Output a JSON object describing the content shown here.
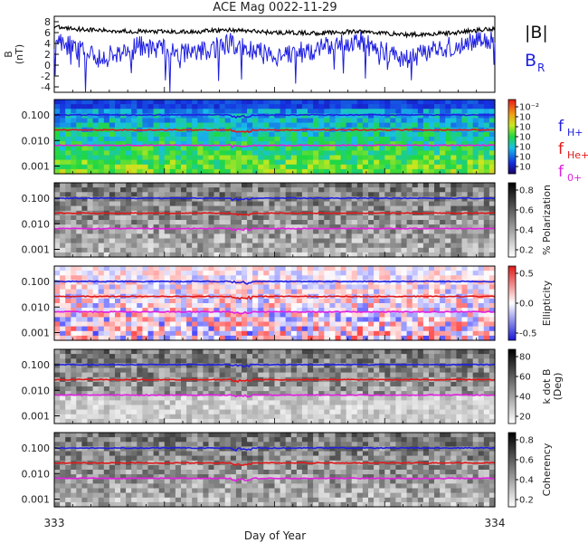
{
  "title": "ACE Mag 0022-11-29",
  "xlabel": "Day of Year",
  "x_ticks": [
    "333",
    "334"
  ],
  "legend": {
    "b_total": "|B|",
    "b_r_main": "B",
    "b_r_sub": "R",
    "fh_main": "f",
    "fh_sub": "H+",
    "fhe_main": "f",
    "fhe_sub": "He+",
    "fo_main": "f",
    "fo_sub": "0+"
  },
  "colors": {
    "b_total": "#000000",
    "b_r": "#1f1fe0",
    "f_h": "#2020e0",
    "f_he": "#e01818",
    "f_o": "#e020e0"
  },
  "chart_data": [
    {
      "type": "line",
      "panel": "magnetic-field",
      "ylabel": "B (nT)",
      "ylabel_main": "B",
      "ylabel_units": "(nT)",
      "y_ticks": [
        "8",
        "6",
        "4",
        "2",
        "0",
        "-2",
        "-4"
      ],
      "ylim": [
        -5,
        9
      ],
      "x": [
        333.0,
        333.1,
        333.2,
        333.3,
        333.4,
        333.5,
        333.6,
        333.7,
        333.8,
        333.9,
        334.0
      ],
      "series": [
        {
          "name": "|B|",
          "values": [
            7.0,
            6.4,
            6.2,
            6.1,
            6.5,
            6.0,
            5.9,
            6.2,
            5.6,
            5.9,
            6.8
          ]
        },
        {
          "name": "B_R",
          "values": [
            5.0,
            1.0,
            3.5,
            2.0,
            4.0,
            1.5,
            3.0,
            4.5,
            1.0,
            3.5,
            5.0
          ]
        }
      ]
    },
    {
      "type": "heatmap",
      "panel": "power",
      "y_ticks": [
        "0.100",
        "0.010",
        "0.001"
      ],
      "colorbar_ticks": [
        "10⁻²",
        "10",
        "10",
        "10",
        "10",
        "10",
        "10"
      ],
      "scale": "log",
      "series": [
        "f_H+",
        "f_He+",
        "f_0+"
      ]
    },
    {
      "type": "heatmap",
      "panel": "polarization",
      "y_ticks": [
        "0.100",
        "0.010",
        "0.001"
      ],
      "colorbar_label": "% Polarization",
      "colorbar_ticks": [
        "0.8",
        "0.6",
        "0.4",
        "0.2"
      ]
    },
    {
      "type": "heatmap",
      "panel": "ellipticity",
      "y_ticks": [
        "0.100",
        "0.010",
        "0.001"
      ],
      "colorbar_label": "Ellipticity",
      "colorbar_ticks": [
        "0.5",
        "0.0",
        "-0.5"
      ]
    },
    {
      "type": "heatmap",
      "panel": "k-dot-b",
      "y_ticks": [
        "0.100",
        "0.010",
        "0.001"
      ],
      "colorbar_label": "k dot B (Deg)",
      "colorbar_label_main": "k dot B",
      "colorbar_label_units": "(Deg)",
      "colorbar_ticks": [
        "80",
        "60",
        "40",
        "20"
      ]
    },
    {
      "type": "heatmap",
      "panel": "coherency",
      "y_ticks": [
        "0.100",
        "0.010",
        "0.001"
      ],
      "colorbar_label": "Coherency",
      "colorbar_ticks": [
        "0.8",
        "0.6",
        "0.4",
        "0.2"
      ]
    }
  ]
}
